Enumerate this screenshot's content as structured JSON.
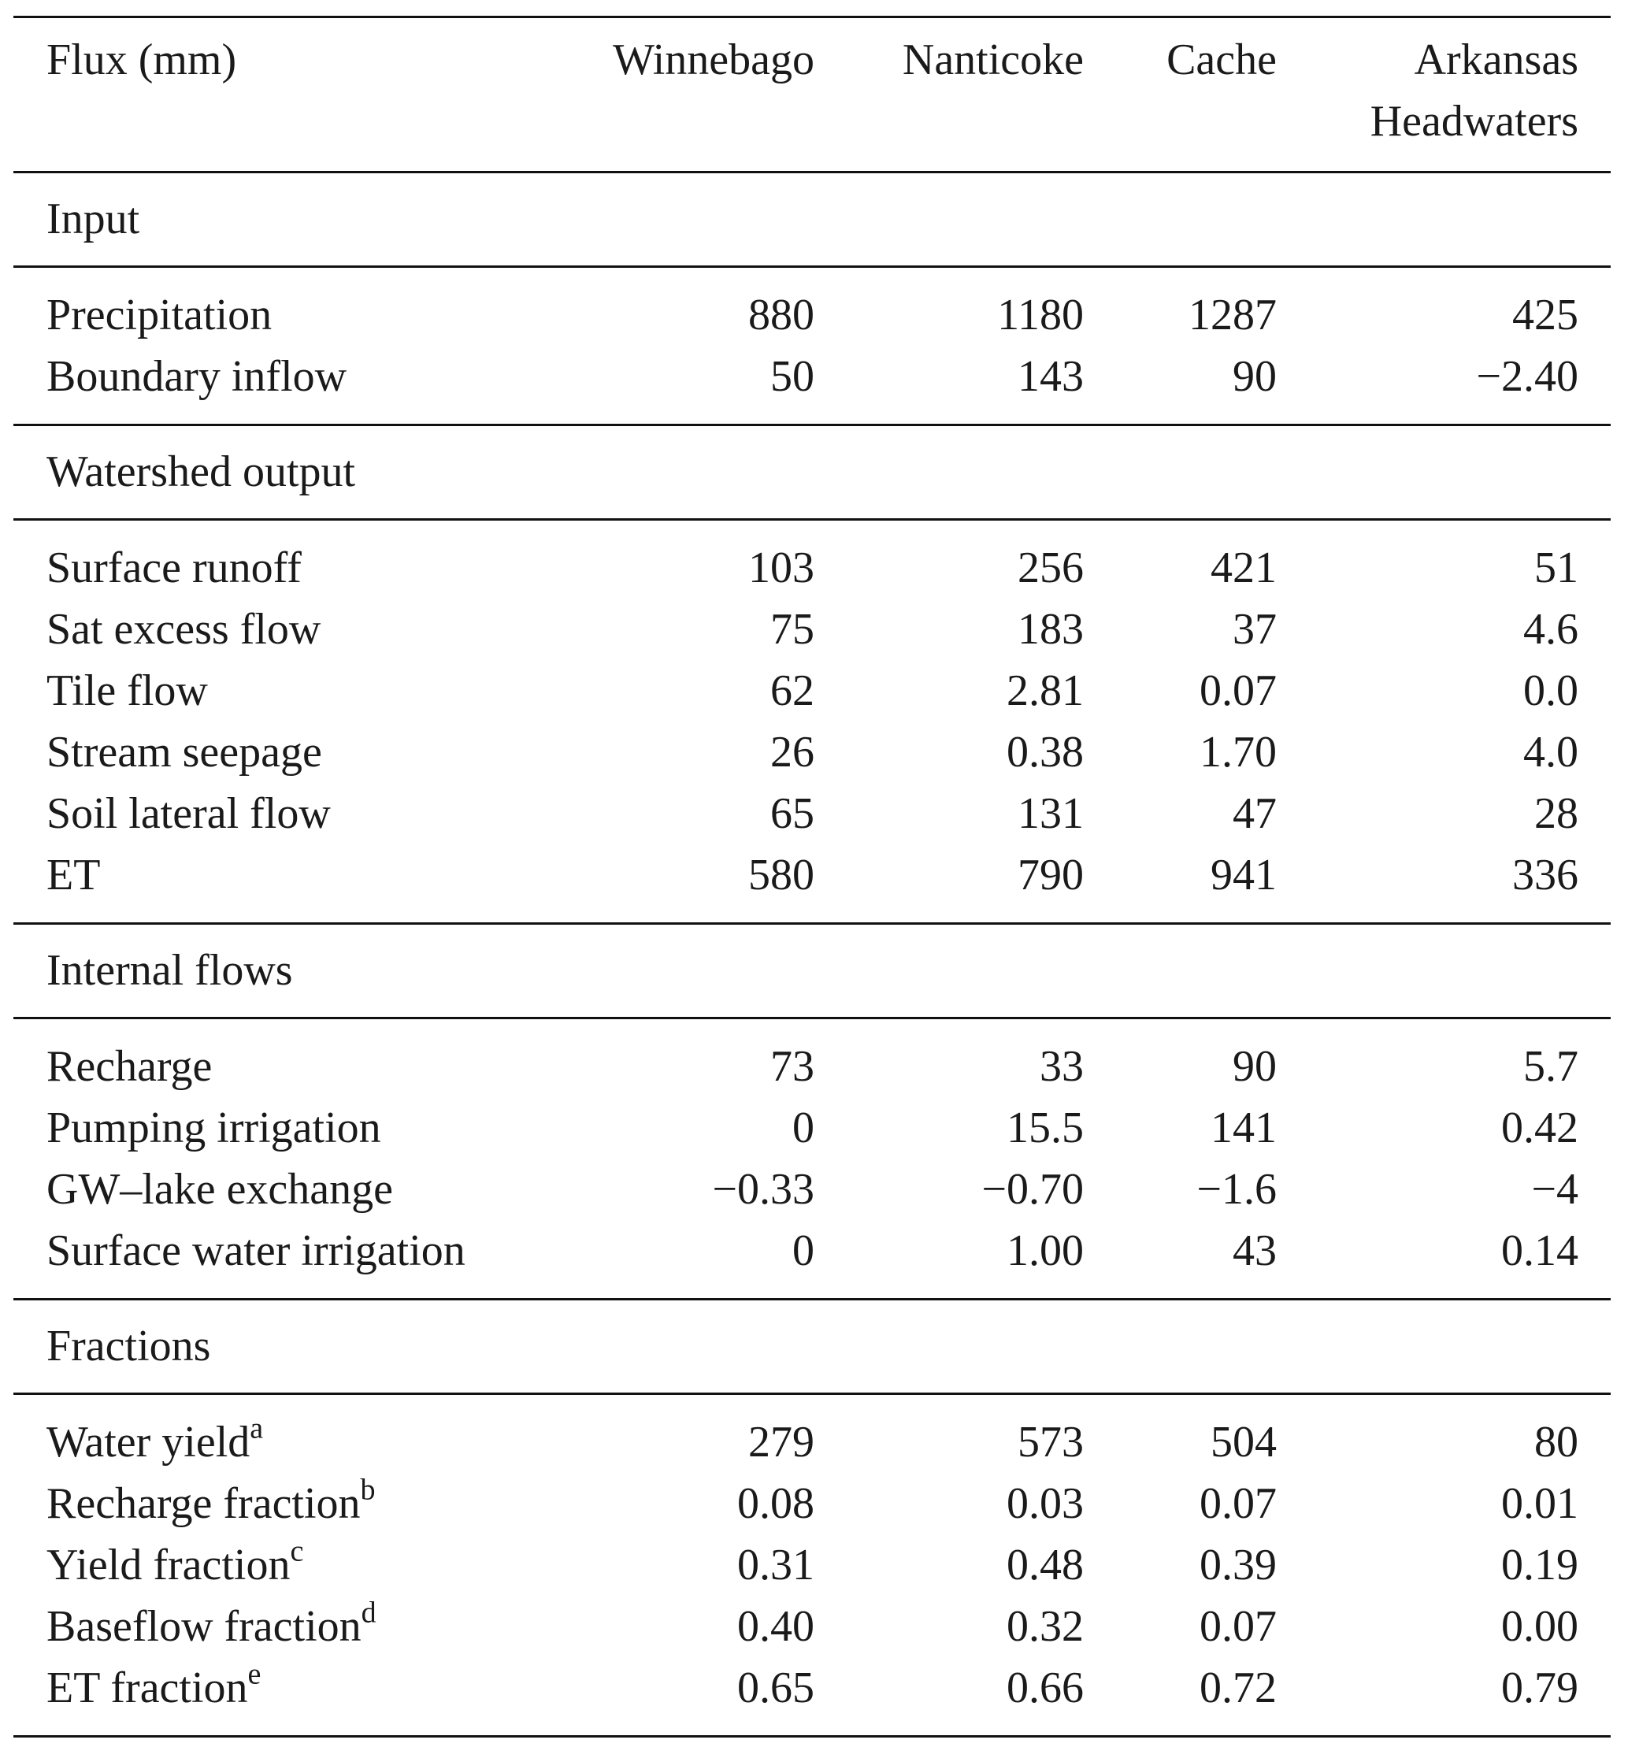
{
  "table": {
    "columns": [
      "Flux (mm)",
      "Winnebago",
      "Nanticoke",
      "Cache",
      "Arkansas Headwaters"
    ],
    "sections": [
      {
        "title": "Input",
        "rows": [
          {
            "label": "Precipitation",
            "values": [
              "880",
              "1180",
              "1287",
              "425"
            ]
          },
          {
            "label": "Boundary inflow",
            "values": [
              "50",
              "143",
              "90",
              "−2.40"
            ]
          }
        ]
      },
      {
        "title": "Watershed output",
        "rows": [
          {
            "label": "Surface runoff",
            "values": [
              "103",
              "256",
              "421",
              "51"
            ]
          },
          {
            "label": "Sat excess flow",
            "values": [
              "75",
              "183",
              "37",
              "4.6"
            ]
          },
          {
            "label": "Tile flow",
            "values": [
              "62",
              "2.81",
              "0.07",
              "0.0"
            ]
          },
          {
            "label": "Stream seepage",
            "values": [
              "26",
              "0.38",
              "1.70",
              "4.0"
            ]
          },
          {
            "label": "Soil lateral flow",
            "values": [
              "65",
              "131",
              "47",
              "28"
            ]
          },
          {
            "label": "ET",
            "values": [
              "580",
              "790",
              "941",
              "336"
            ]
          }
        ]
      },
      {
        "title": "Internal flows",
        "rows": [
          {
            "label": "Recharge",
            "values": [
              "73",
              "33",
              "90",
              "5.7"
            ]
          },
          {
            "label": "Pumping irrigation",
            "values": [
              "0",
              "15.5",
              "141",
              "0.42"
            ]
          },
          {
            "label": "GW–lake exchange",
            "values": [
              "−0.33",
              "−0.70",
              "−1.6",
              "−4"
            ]
          },
          {
            "label": "Surface water irrigation",
            "values": [
              "0",
              "1.00",
              "43",
              "0.14"
            ]
          }
        ]
      },
      {
        "title": "Fractions",
        "rows": [
          {
            "label": "Water yield",
            "note": "a",
            "values": [
              "279",
              "573",
              "504",
              "80"
            ]
          },
          {
            "label": "Recharge fraction",
            "note": "b",
            "values": [
              "0.08",
              "0.03",
              "0.07",
              "0.01"
            ]
          },
          {
            "label": "Yield fraction",
            "note": "c",
            "values": [
              "0.31",
              "0.48",
              "0.39",
              "0.19"
            ]
          },
          {
            "label": "Baseflow fraction",
            "note": "d",
            "values": [
              "0.40",
              "0.32",
              "0.07",
              "0.00"
            ]
          },
          {
            "label": "ET fraction",
            "note": "e",
            "values": [
              "0.65",
              "0.66",
              "0.72",
              "0.79"
            ]
          }
        ]
      }
    ]
  }
}
